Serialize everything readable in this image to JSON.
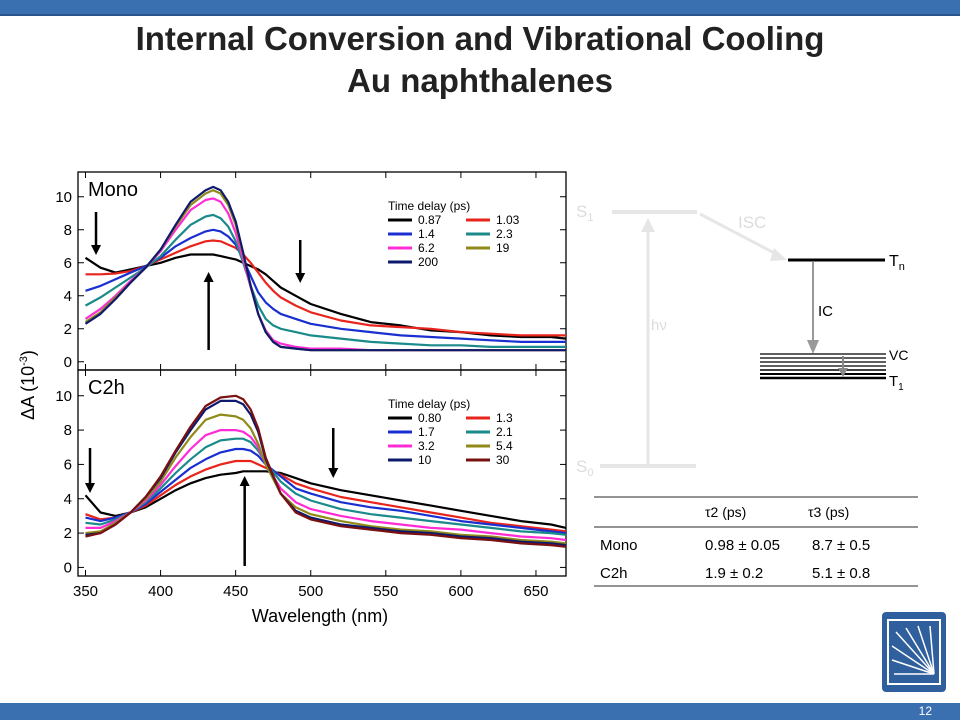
{
  "slide": {
    "title_line1": "Internal Conversion and Vibrational Cooling",
    "title_line2": "Au naphthalenes",
    "page_number": "12"
  },
  "chart_data": [
    {
      "type": "line",
      "panel": "Mono",
      "legend_title": "Time delay (ps)",
      "xlabel": "Wavelength (nm)",
      "ylabel": "ΔA (10⁻³)",
      "xlim": [
        345,
        670
      ],
      "ylim": [
        -0.5,
        11.5
      ],
      "x": [
        350,
        360,
        370,
        380,
        390,
        400,
        410,
        420,
        430,
        435,
        440,
        445,
        450,
        455,
        460,
        465,
        470,
        475,
        480,
        490,
        500,
        520,
        540,
        560,
        580,
        600,
        620,
        640,
        660,
        670
      ],
      "series": [
        {
          "name": "0.87",
          "color": "#000000",
          "values": [
            6.3,
            5.7,
            5.4,
            5.6,
            5.8,
            6.0,
            6.3,
            6.5,
            6.5,
            6.5,
            6.4,
            6.3,
            6.2,
            6.0,
            5.8,
            5.6,
            5.3,
            4.9,
            4.5,
            4.0,
            3.5,
            2.9,
            2.4,
            2.2,
            1.9,
            1.8,
            1.6,
            1.5,
            1.5,
            1.4
          ]
        },
        {
          "name": "1.03",
          "color": "#e8241c",
          "values": [
            5.3,
            5.3,
            5.35,
            5.5,
            5.8,
            6.2,
            6.6,
            7.0,
            7.3,
            7.35,
            7.3,
            7.1,
            6.9,
            6.5,
            6.0,
            5.4,
            4.8,
            4.3,
            3.9,
            3.4,
            3.0,
            2.5,
            2.2,
            2.1,
            2.0,
            1.8,
            1.7,
            1.6,
            1.6,
            1.6
          ]
        },
        {
          "name": "1.4",
          "color": "#1a2fd0",
          "values": [
            4.3,
            4.6,
            5.0,
            5.4,
            5.8,
            6.3,
            7.0,
            7.5,
            7.9,
            8.0,
            7.9,
            7.6,
            7.1,
            6.2,
            5.2,
            4.2,
            3.6,
            3.2,
            2.9,
            2.6,
            2.3,
            2.0,
            1.8,
            1.6,
            1.5,
            1.4,
            1.3,
            1.2,
            1.2,
            1.2
          ]
        },
        {
          "name": "2.3",
          "color": "#1a8a8a",
          "values": [
            3.4,
            3.9,
            4.5,
            5.1,
            5.7,
            6.4,
            7.4,
            8.3,
            8.8,
            8.9,
            8.7,
            8.2,
            7.3,
            6.0,
            4.6,
            3.4,
            2.6,
            2.2,
            2.0,
            1.8,
            1.6,
            1.4,
            1.2,
            1.1,
            1.0,
            1.0,
            0.9,
            0.9,
            0.9,
            0.9
          ]
        },
        {
          "name": "6.2",
          "color": "#ff2cd6",
          "values": [
            2.6,
            3.2,
            4.0,
            4.9,
            5.7,
            6.7,
            8.0,
            9.2,
            9.8,
            9.9,
            9.7,
            9.0,
            7.8,
            6.2,
            4.5,
            2.9,
            1.9,
            1.3,
            1.1,
            0.9,
            0.8,
            0.8,
            0.7,
            0.7,
            0.7,
            0.7,
            0.7,
            0.7,
            0.7,
            0.7
          ]
        },
        {
          "name": "19",
          "color": "#8f8a1a",
          "values": [
            2.4,
            3.0,
            3.9,
            4.8,
            5.7,
            6.8,
            8.2,
            9.5,
            10.2,
            10.4,
            10.2,
            9.5,
            8.3,
            6.5,
            4.6,
            2.9,
            1.8,
            1.2,
            0.9,
            0.8,
            0.7,
            0.7,
            0.7,
            0.7,
            0.7,
            0.7,
            0.7,
            0.7,
            0.7,
            0.7
          ]
        },
        {
          "name": "200",
          "color": "#0e1a6e",
          "values": [
            2.3,
            2.9,
            3.8,
            4.8,
            5.7,
            6.8,
            8.3,
            9.7,
            10.4,
            10.6,
            10.4,
            9.7,
            8.5,
            6.6,
            4.6,
            2.9,
            1.8,
            1.2,
            0.9,
            0.8,
            0.7,
            0.7,
            0.7,
            0.7,
            0.7,
            0.7,
            0.7,
            0.7,
            0.7,
            0.7
          ]
        }
      ],
      "arrows_nm": [
        {
          "x": 357,
          "dir": "down"
        },
        {
          "x": 432,
          "dir": "up"
        },
        {
          "x": 493,
          "dir": "down"
        }
      ]
    },
    {
      "type": "line",
      "panel": "C2h",
      "legend_title": "Time delay (ps)",
      "xlabel": "Wavelength (nm)",
      "ylabel": "ΔA (10⁻³)",
      "xlim": [
        345,
        670
      ],
      "ylim": [
        -0.5,
        11.5
      ],
      "x": [
        350,
        360,
        370,
        380,
        390,
        400,
        410,
        420,
        430,
        440,
        450,
        455,
        460,
        465,
        470,
        480,
        490,
        500,
        520,
        540,
        560,
        580,
        600,
        620,
        640,
        660,
        670
      ],
      "series": [
        {
          "name": "0.80",
          "color": "#000000",
          "values": [
            4.2,
            3.2,
            3.0,
            3.2,
            3.5,
            4.0,
            4.5,
            4.9,
            5.2,
            5.4,
            5.5,
            5.6,
            5.6,
            5.6,
            5.6,
            5.5,
            5.2,
            4.9,
            4.5,
            4.2,
            3.9,
            3.6,
            3.3,
            3.0,
            2.7,
            2.5,
            2.3
          ]
        },
        {
          "name": "1.3",
          "color": "#e8241c",
          "values": [
            3.1,
            2.8,
            2.9,
            3.2,
            3.6,
            4.2,
            4.8,
            5.3,
            5.7,
            6.0,
            6.2,
            6.2,
            6.2,
            6.0,
            5.8,
            5.4,
            4.9,
            4.6,
            4.1,
            3.8,
            3.5,
            3.2,
            2.9,
            2.6,
            2.4,
            2.2,
            2.1
          ]
        },
        {
          "name": "1.7",
          "color": "#1a2fd0",
          "values": [
            2.9,
            2.7,
            2.9,
            3.2,
            3.7,
            4.4,
            5.1,
            5.8,
            6.3,
            6.7,
            6.9,
            6.9,
            6.8,
            6.5,
            6.0,
            5.3,
            4.6,
            4.3,
            3.8,
            3.5,
            3.3,
            3.0,
            2.7,
            2.5,
            2.3,
            2.1,
            2.0
          ]
        },
        {
          "name": "2.1",
          "color": "#1a8a8a",
          "values": [
            2.6,
            2.5,
            2.8,
            3.2,
            3.8,
            4.6,
            5.5,
            6.3,
            7.0,
            7.4,
            7.5,
            7.5,
            7.3,
            6.8,
            6.1,
            5.0,
            4.3,
            3.9,
            3.4,
            3.1,
            2.9,
            2.7,
            2.5,
            2.3,
            2.1,
            2.0,
            1.9
          ]
        },
        {
          "name": "3.2",
          "color": "#ff2cd6",
          "values": [
            2.3,
            2.3,
            2.7,
            3.2,
            3.9,
            4.8,
            5.9,
            6.9,
            7.7,
            8.0,
            8.0,
            7.9,
            7.6,
            7.0,
            6.0,
            4.6,
            3.8,
            3.4,
            3.0,
            2.7,
            2.5,
            2.3,
            2.2,
            2.0,
            1.8,
            1.7,
            1.6
          ]
        },
        {
          "name": "5.4",
          "color": "#8f8a1a",
          "values": [
            2.0,
            2.1,
            2.6,
            3.2,
            4.0,
            5.0,
            6.4,
            7.6,
            8.6,
            8.9,
            8.8,
            8.6,
            8.1,
            7.2,
            6.0,
            4.3,
            3.5,
            3.1,
            2.7,
            2.4,
            2.2,
            2.1,
            1.9,
            1.8,
            1.6,
            1.5,
            1.4
          ]
        },
        {
          "name": "10",
          "color": "#0e1a6e",
          "values": [
            1.9,
            2.0,
            2.5,
            3.2,
            4.1,
            5.2,
            6.7,
            8.0,
            9.2,
            9.7,
            9.7,
            9.5,
            8.9,
            7.9,
            6.3,
            4.3,
            3.3,
            2.9,
            2.5,
            2.3,
            2.1,
            2.0,
            1.8,
            1.7,
            1.5,
            1.4,
            1.3
          ]
        },
        {
          "name": "30",
          "color": "#7a1010",
          "values": [
            1.8,
            2.0,
            2.5,
            3.2,
            4.1,
            5.3,
            6.8,
            8.2,
            9.4,
            9.9,
            10.0,
            9.8,
            9.2,
            8.1,
            6.4,
            4.3,
            3.2,
            2.8,
            2.4,
            2.2,
            2.0,
            1.9,
            1.7,
            1.6,
            1.4,
            1.3,
            1.2
          ]
        }
      ],
      "arrows_nm": [
        {
          "x": 353,
          "dir": "down"
        },
        {
          "x": 456,
          "dir": "up"
        },
        {
          "x": 515,
          "dir": "down"
        }
      ]
    }
  ],
  "axes": {
    "x_ticks": [
      "350",
      "400",
      "450",
      "500",
      "550",
      "600",
      "650"
    ],
    "x_tick_values": [
      350,
      400,
      450,
      500,
      550,
      600,
      650
    ],
    "y_ticks": [
      "0",
      "2",
      "4",
      "6",
      "8",
      "10"
    ],
    "y_tick_values": [
      0,
      2,
      4,
      6,
      8,
      10
    ],
    "xlabel": "Wavelength (nm)",
    "ylabel_main": "ΔA (10",
    "ylabel_sup": "-3",
    "ylabel_close": ")"
  },
  "diagram": {
    "s1": "S",
    "s1_sub": "1",
    "s0": "S",
    "s0_sub": "0",
    "tn": "T",
    "tn_sub": "n",
    "t1": "T",
    "t1_sub": "1",
    "isc": "ISC",
    "ic": "IC",
    "vc": "VC",
    "hv": "hν"
  },
  "table": {
    "headers": [
      "",
      "τ2 (ps)",
      "τ3 (ps)"
    ],
    "rows": [
      [
        "Mono",
        "0.98 ± 0.05",
        "8.7 ± 0.5"
      ],
      [
        "C2h",
        "1.9 ± 0.2",
        "5.1 ± 0.8"
      ]
    ]
  }
}
